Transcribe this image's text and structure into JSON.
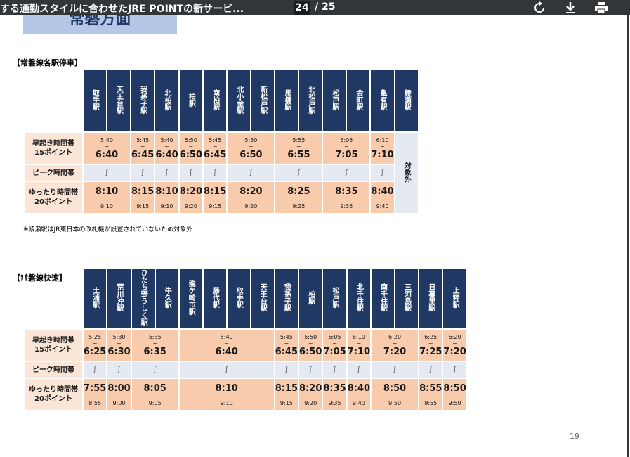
{
  "toolbar": {
    "title": "する通勤スタイルに合わせたJRE POINTの新サービ...",
    "page": "24",
    "total": "/ 25"
  },
  "heading": "常磐方面",
  "sep": "~",
  "labels": [
    {
      "l1": "早起き時間帯",
      "l2": "15ポイント"
    },
    {
      "l1": "ピーク時間帯"
    },
    {
      "l1": "ゆったり時間帯",
      "l2": "20ポイント"
    }
  ],
  "tables": [
    {
      "caption": "【常磐線各駅停車】",
      "stations": [
        "取手駅",
        "天王台駅",
        "我孫子駅",
        "北柏駅",
        "柏駅",
        "南柏駅",
        "北小金駅",
        "新松戸駅",
        "馬橋駅",
        "北松戸駅",
        "松戸駅",
        "金町駅",
        "亀有駅",
        "綾瀬駅"
      ],
      "early": [
        {
          "span": 2,
          "start": "5:40",
          "end": "6:40"
        },
        {
          "span": 1,
          "start": "5:45",
          "end": "6:45"
        },
        {
          "span": 1,
          "start": "5:40",
          "end": "6:40"
        },
        {
          "span": 1,
          "start": "5:50",
          "end": "6:50"
        },
        {
          "span": 1,
          "start": "5:45",
          "end": "6:45"
        },
        {
          "span": 2,
          "start": "5:50",
          "end": "6:50"
        },
        {
          "span": 2,
          "start": "5:55",
          "end": "6:55"
        },
        {
          "span": 2,
          "start": "6:05",
          "end": "7:05"
        },
        {
          "span": 1,
          "start": "6:10",
          "end": "7:10"
        }
      ],
      "peak": [
        "ʃ",
        "ʃ",
        "ʃ",
        "ʃ",
        "ʃ",
        "ʃ",
        "ʃ",
        "ʃ",
        "ʃ"
      ],
      "late": [
        {
          "start": "8:10",
          "end": "9:10"
        },
        {
          "start": "8:15",
          "end": "9:15"
        },
        {
          "start": "8:10",
          "end": "9:10"
        },
        {
          "start": "8:20",
          "end": "9:20"
        },
        {
          "start": "8:15",
          "end": "9:15"
        },
        {
          "start": "8:20",
          "end": "9:20"
        },
        {
          "start": "8:25",
          "end": "9:25"
        },
        {
          "start": "8:35",
          "end": "9:35"
        },
        {
          "start": "8:40",
          "end": "9:40"
        }
      ],
      "excluded": "対象外",
      "note": "※綾瀬駅はJR東日本の改札機が設置されていないため対象外"
    },
    {
      "caption": "【常磐線快速】",
      "stations": [
        "土浦駅",
        "荒川沖駅",
        "ひたち野うしく駅",
        "牛久駅",
        "龍ケ崎市駅",
        "藤代駅",
        "取手駅",
        "天王台駅",
        "我孫子駅",
        "柏駅",
        "松戸駅",
        "北千住駅",
        "南千住駅",
        "三河島駅",
        "日暮里駅",
        "上野駅"
      ],
      "early": [
        {
          "span": 1,
          "start": "5:25",
          "end": "6:25"
        },
        {
          "span": 1,
          "start": "5:30",
          "end": "6:30"
        },
        {
          "span": 2,
          "start": "5:35",
          "end": "6:35"
        },
        {
          "span": 4,
          "start": "5:40",
          "end": "6:40"
        },
        {
          "span": 1,
          "start": "5:45",
          "end": "6:45"
        },
        {
          "span": 1,
          "start": "5:50",
          "end": "6:50"
        },
        {
          "span": 1,
          "start": "6:05",
          "end": "7:05"
        },
        {
          "span": 1,
          "start": "6:10",
          "end": "7:10"
        },
        {
          "span": 2,
          "start": "6:20",
          "end": "7:20"
        },
        {
          "span": 1,
          "start": "6:25",
          "end": "7:25"
        },
        {
          "span": 1,
          "start": "6:20",
          "end": "7:20"
        }
      ],
      "peak": [
        "ʃ",
        "ʃ",
        "ʃ",
        "ʃ",
        "ʃ",
        "ʃ",
        "ʃ",
        "ʃ",
        "ʃ",
        "ʃ",
        "ʃ"
      ],
      "late": [
        {
          "start": "7:55",
          "end": "8:55"
        },
        {
          "start": "8:00",
          "end": "9:00"
        },
        {
          "start": "8:05",
          "end": "9:05"
        },
        {
          "start": "8:10",
          "end": "9:10"
        },
        {
          "start": "8:15",
          "end": "9:15"
        },
        {
          "start": "8:20",
          "end": "9:20"
        },
        {
          "start": "8:35",
          "end": "9:35"
        },
        {
          "start": "8:40",
          "end": "9:40"
        },
        {
          "start": "8:50",
          "end": "9:50"
        },
        {
          "start": "8:55",
          "end": "9:55"
        },
        {
          "start": "8:50",
          "end": "9:50"
        }
      ]
    }
  ],
  "page_number": "19"
}
